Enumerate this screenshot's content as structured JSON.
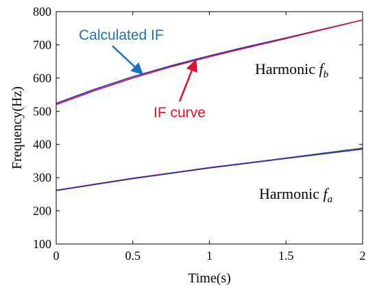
{
  "chart_data": {
    "type": "line",
    "xlabel": "Time(s)",
    "ylabel": "Frequency(Hz)",
    "xlim": [
      0,
      2
    ],
    "ylim": [
      100,
      800
    ],
    "xticks": [
      0,
      0.5,
      1,
      1.5,
      2
    ],
    "xtick_labels": [
      "0",
      "0.5",
      "1",
      "1.5",
      "2"
    ],
    "yticks": [
      100,
      200,
      300,
      400,
      500,
      600,
      700,
      800
    ],
    "ytick_labels": [
      "100",
      "200",
      "300",
      "400",
      "500",
      "600",
      "700",
      "800"
    ],
    "grid": false,
    "series": [
      {
        "name": "Calculated IF",
        "color": "#1f2ec9",
        "x": [
          0,
          0.25,
          0.5,
          0.75,
          1,
          1.25,
          1.5,
          1.75,
          2
        ],
        "y": [
          524,
          566,
          604,
          637,
          667,
          695,
          721,
          748,
          775
        ]
      },
      {
        "name": "IF curve",
        "color": "#e0102a",
        "x": [
          0,
          0.25,
          0.5,
          0.75,
          1,
          1.25,
          1.5,
          1.75,
          2
        ],
        "y": [
          520,
          562,
          600,
          634,
          664,
          692,
          719,
          747,
          775
        ]
      },
      {
        "color": "#1f8f3a",
        "x": [
          0,
          0.5,
          1,
          1.5,
          2
        ],
        "y": [
          261,
          298,
          330,
          359,
          389
        ]
      },
      {
        "color": "#e0102a",
        "x": [
          0,
          0.5,
          1,
          1.5,
          2
        ],
        "y": [
          262,
          298,
          330,
          358,
          386
        ]
      },
      {
        "color": "#1f2ec9",
        "x": [
          0,
          0.5,
          1,
          1.5,
          2
        ],
        "y": [
          261,
          297,
          329,
          358,
          387
        ]
      }
    ],
    "annotations": {
      "calculated": {
        "text": "Calculated IF",
        "color": "#1a70c0",
        "arrow_to": [
          0.5,
          604
        ]
      },
      "if_curve": {
        "text": "IF curve",
        "color": "#e0102a",
        "arrow_to": [
          0.92,
          661
        ]
      },
      "harmonic_b": {
        "text": "Harmonic ",
        "symbol": "f",
        "sub": "b"
      },
      "harmonic_a": {
        "text": "Harmonic ",
        "symbol": "f",
        "sub": "a"
      }
    }
  }
}
